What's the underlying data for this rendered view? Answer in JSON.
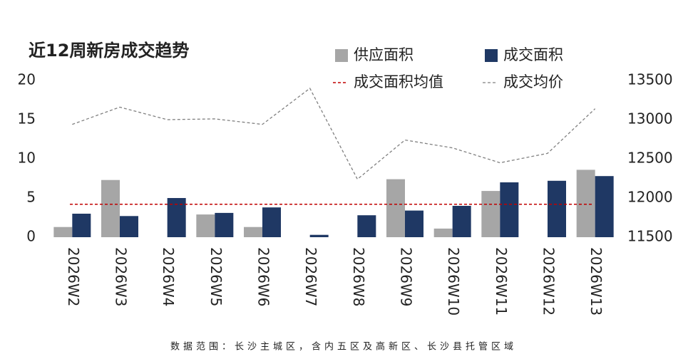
{
  "chart_data": {
    "type": "bar",
    "title": "近12周新房成交趋势",
    "categories": [
      "2026W2",
      "2026W3",
      "2026W4",
      "2026W5",
      "2026W6",
      "2026W7",
      "2026W8",
      "2026W9",
      "2026W10",
      "2026W11",
      "2026W12",
      "2026W13"
    ],
    "series": [
      {
        "name": "供应面积",
        "color": "#a6a6a6",
        "values": [
          1.3,
          7.3,
          0,
          2.9,
          1.3,
          0,
          0,
          7.4,
          1.1,
          5.9,
          0,
          8.6
        ]
      },
      {
        "name": "成交面积",
        "color": "#1f3864",
        "values": [
          3.0,
          2.7,
          5.0,
          3.1,
          3.8,
          0.3,
          2.8,
          3.4,
          4.0,
          7.0,
          7.2,
          7.8
        ]
      },
      {
        "name": "成交均价",
        "color": "#808080",
        "axis": "y2",
        "type": "line",
        "values": [
          12940,
          13160,
          13000,
          13010,
          12940,
          13400,
          12240,
          12740,
          12640,
          12450,
          12570,
          13140
        ]
      }
    ],
    "mean_line": {
      "name": "成交面积均值",
      "color": "#c00000",
      "value": 4.2
    },
    "ylim": [
      0,
      20
    ],
    "yticks": [
      0,
      5,
      10,
      15,
      20
    ],
    "y2lim": [
      11500,
      13500
    ],
    "y2ticks": [
      11500,
      12000,
      12500,
      13000,
      13500
    ],
    "footnote": "数据范围：长沙主城区，含内五区及高新区、长沙县托管区域"
  }
}
